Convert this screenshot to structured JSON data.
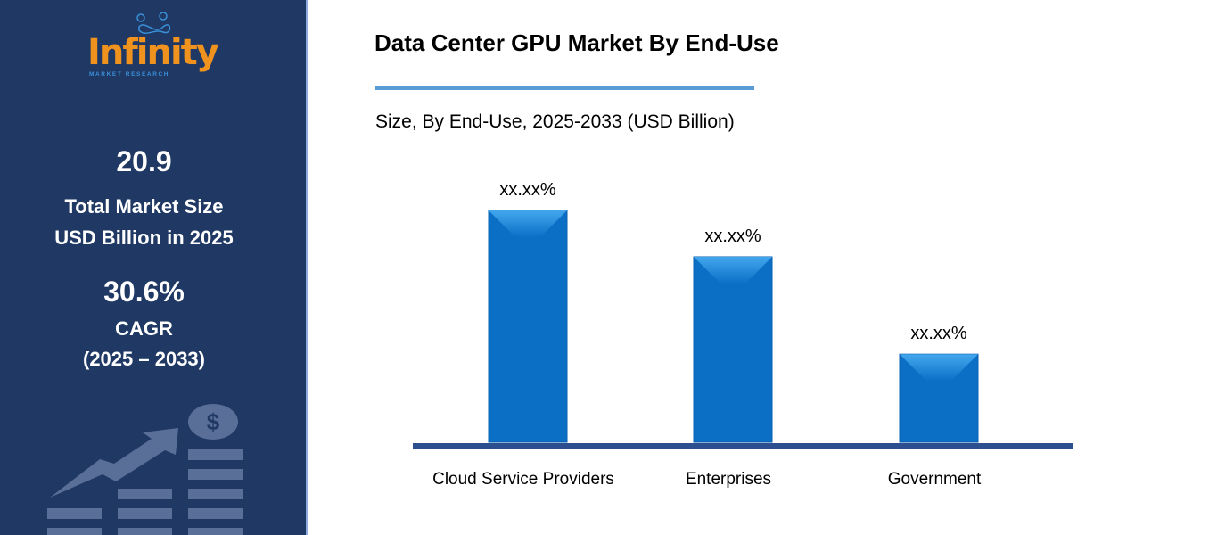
{
  "sidebar": {
    "logo": {
      "word": "Infinity",
      "sub": "MARKET RESEARCH"
    },
    "market_size_value": "20.9",
    "market_size_label_1": "Total Market Size",
    "market_size_label_2": "USD Billion in 2025",
    "cagr_value": "30.6%",
    "cagr_label": "CAGR",
    "cagr_period": "(2025 – 2033)",
    "background_color": "#1f3864"
  },
  "chart_data": {
    "type": "bar",
    "title": "Data Center GPU Market By End-Use",
    "subtitle": "Size, By End-Use, 2025-2033 (USD Billion)",
    "categories": [
      "Cloud Service Providers",
      "Enterprises",
      "Government"
    ],
    "values": [
      1.0,
      0.8,
      0.38
    ],
    "data_labels": [
      "xx.xx%",
      "xx.xx%",
      "xx.xx%"
    ],
    "y_axis_shown": false,
    "grid": false,
    "bar_color": "#0b6fc6",
    "axis_color": "#2e4f8f"
  }
}
